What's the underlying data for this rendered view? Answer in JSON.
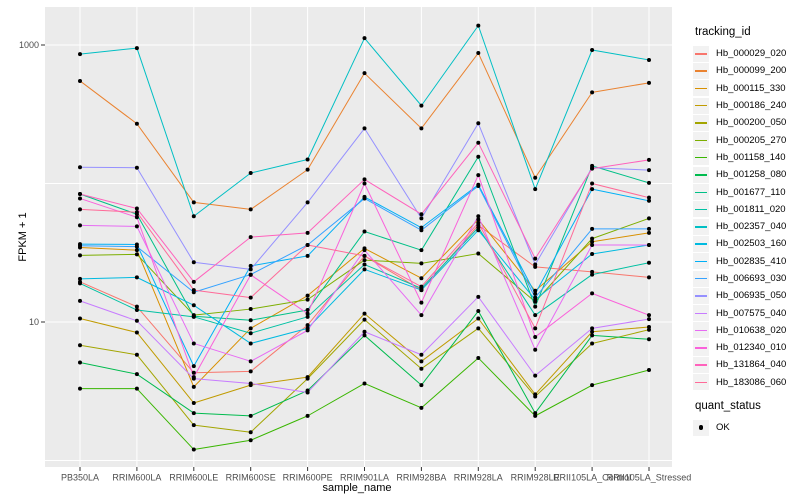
{
  "figure": {
    "background": "#FFFFFF",
    "panel_background": "#EBEBEB",
    "gridline_color": "#FFFFFF",
    "tick_color": "#333333",
    "tick_label_color": "#4D4D4D",
    "axis_title_color": "#000000",
    "legend_key_fill": "#F2F2F2",
    "point_color": "#000000"
  },
  "chart_data": {
    "type": "line",
    "title": "",
    "xlabel": "sample_name",
    "ylabel": "FPKM + 1",
    "y_scale": "log10",
    "ylim": [
      0.9,
      1700
    ],
    "y_tick_labels": [
      "1000",
      "10"
    ],
    "y_tick_values": [
      1000,
      10
    ],
    "y_gridline_values": [
      1,
      10,
      100,
      1000
    ],
    "grid": "on",
    "legend_position": "right",
    "x_categories": [
      "PB350LA",
      "RRIM600LA",
      "RRIM600LE",
      "RRIM600SE",
      "RRIM600PE",
      "RRIM901LA",
      "RRIM928BA",
      "RRIM928LA",
      "RRIM928LE",
      "RRII105LA_Control",
      "RRII105LA_Stressed"
    ],
    "series": [
      {
        "name": "Hb_000029_020",
        "color": "#F8766D",
        "values": [
          19.5,
          12.9,
          4.3,
          4.4,
          9.5,
          30,
          17,
          50,
          25,
          23,
          21
        ]
      },
      {
        "name": "Hb_000099_200",
        "color": "#EA8331",
        "values": [
          550,
          270,
          73,
          65,
          126,
          626,
          250,
          875,
          110,
          455,
          533
        ]
      },
      {
        "name": "Hb_000115_330",
        "color": "#D89000",
        "values": [
          34.5,
          33,
          3.4,
          9,
          15.5,
          34,
          20.7,
          55,
          16.8,
          38,
          44
        ]
      },
      {
        "name": "Hb_000186_240",
        "color": "#C09B00",
        "values": [
          10.6,
          8.4,
          2.6,
          3.5,
          4,
          11.5,
          5.2,
          10.6,
          3,
          8.5,
          9.2
        ]
      },
      {
        "name": "Hb_000200_050",
        "color": "#A3A500",
        "values": [
          6.8,
          5.8,
          1.8,
          1.6,
          3.9,
          10.4,
          4.6,
          9,
          2.9,
          7,
          8.8
        ]
      },
      {
        "name": "Hb_000205_270",
        "color": "#7CAE00",
        "values": [
          30.3,
          30.8,
          11.2,
          12.4,
          14.5,
          28,
          26.5,
          31.2,
          14,
          40,
          56
        ]
      },
      {
        "name": "Hb_001158_140",
        "color": "#39B600",
        "values": [
          3.3,
          3.3,
          1.2,
          1.4,
          2.1,
          3.6,
          2.4,
          5.5,
          2.1,
          3.5,
          4.5
        ]
      },
      {
        "name": "Hb_001258_080",
        "color": "#00BB4E",
        "values": [
          5.1,
          4.2,
          2.2,
          2.1,
          3.2,
          8,
          3.5,
          12,
          2.2,
          8,
          7.5
        ]
      },
      {
        "name": "Hb_001677_110",
        "color": "#00C087",
        "values": [
          84,
          60,
          11,
          10.3,
          12.2,
          45,
          33,
          156,
          12.9,
          134,
          101
        ]
      },
      {
        "name": "Hb_001811_020",
        "color": "#00C1A3",
        "values": [
          19,
          12.2,
          10.9,
          8.3,
          10.9,
          26,
          17.5,
          48,
          11.2,
          22,
          26.8
        ]
      },
      {
        "name": "Hb_002357_040",
        "color": "#00BFC4",
        "values": [
          860,
          950,
          58,
          119,
          149,
          1120,
          365,
          1380,
          91,
          920,
          780
        ]
      },
      {
        "name": "Hb_002503_160",
        "color": "#00BAE0",
        "values": [
          20.5,
          21,
          13.2,
          7,
          9,
          24,
          17,
          46,
          14.5,
          31,
          36
        ]
      },
      {
        "name": "Hb_002835_410",
        "color": "#00B0F6",
        "values": [
          36.5,
          36.3,
          4.8,
          25.4,
          30,
          80,
          48,
          98,
          16,
          91,
          75
        ]
      },
      {
        "name": "Hb_006693_030",
        "color": "#35A2FF",
        "values": [
          35.5,
          35,
          16.4,
          22,
          36,
          78,
          46,
          96,
          15,
          47,
          47
        ]
      },
      {
        "name": "Hb_006935_050",
        "color": "#9590FF",
        "values": [
          131,
          130,
          27,
          24,
          73,
          250,
          56,
          272,
          26,
          130,
          125
        ]
      },
      {
        "name": "Hb_007575_040",
        "color": "#C77CFF",
        "values": [
          14.2,
          10.2,
          3.9,
          3.6,
          3.1,
          8.5,
          5.8,
          15.2,
          4.1,
          9,
          10.5
        ]
      },
      {
        "name": "Hb_010638_020",
        "color": "#E76BF3",
        "values": [
          49.8,
          49,
          7,
          5.2,
          8.7,
          33,
          11.2,
          58,
          6.3,
          36,
          36
        ]
      },
      {
        "name": "Hb_012340_010",
        "color": "#FA62DB",
        "values": [
          78,
          57,
          4,
          21.9,
          11.5,
          100,
          13.8,
          115,
          7.8,
          16.1,
          11.2
        ]
      },
      {
        "name": "Hb_131864_040",
        "color": "#FF62BC",
        "values": [
          84,
          66,
          19.5,
          41,
          44,
          107,
          60,
          197,
          28.7,
          128,
          148
        ]
      },
      {
        "name": "Hb_183086_060",
        "color": "#FF6A98",
        "values": [
          65,
          62,
          17,
          15,
          36,
          30,
          18,
          52,
          9,
          100,
          79
        ]
      }
    ]
  },
  "legend": {
    "tracking_title": "tracking_id",
    "quant_title": "quant_status",
    "quant_items": [
      {
        "label": "OK"
      }
    ]
  }
}
